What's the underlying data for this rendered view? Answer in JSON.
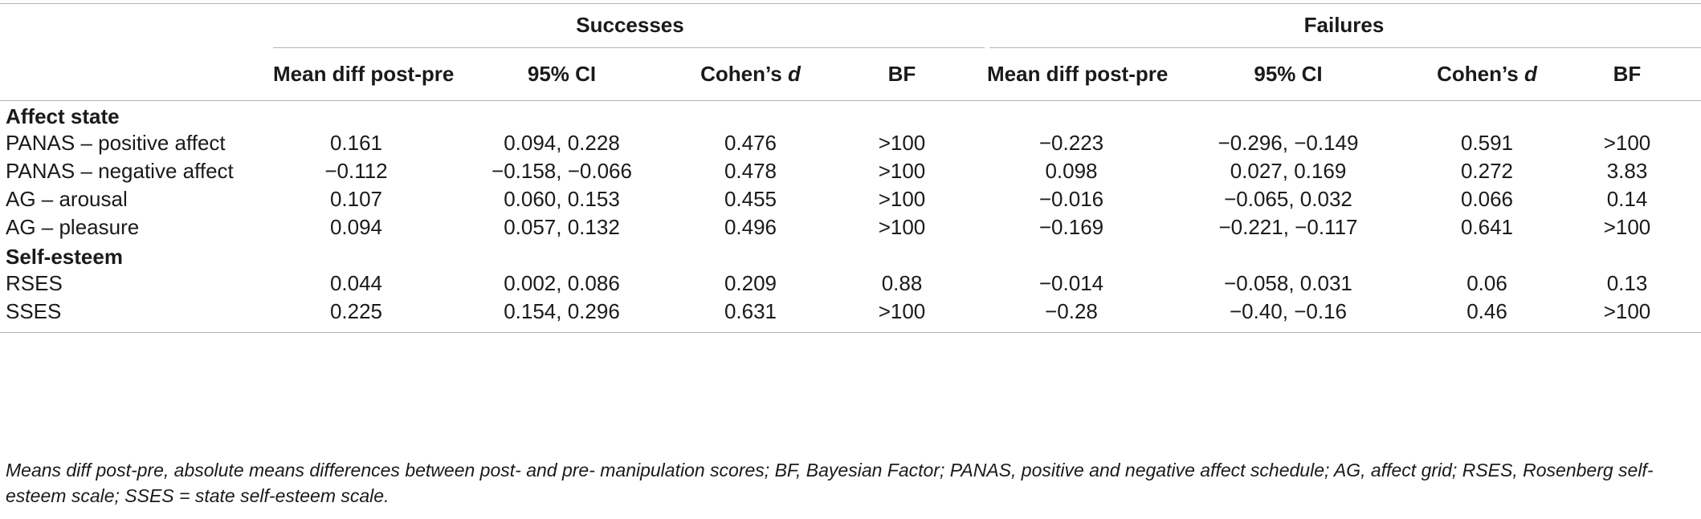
{
  "header": {
    "groups": [
      "Successes",
      "Failures"
    ],
    "columns": [
      {
        "text": "Mean diff post-pre",
        "italic": ""
      },
      {
        "text": "95% CI",
        "italic": ""
      },
      {
        "text": "Cohen’s ",
        "italic": "d"
      },
      {
        "text": "BF",
        "italic": ""
      },
      {
        "text": "Mean diff post-pre",
        "italic": ""
      },
      {
        "text": "95% CI",
        "italic": ""
      },
      {
        "text": "Cohen’s ",
        "italic": "d"
      },
      {
        "text": "BF",
        "italic": ""
      }
    ]
  },
  "sections": [
    {
      "title": "Affect state",
      "rows": [
        {
          "label": "PANAS – positive affect",
          "values": [
            "0.161",
            "0.094, 0.228",
            "0.476",
            ">100",
            "−0.223",
            "−0.296, −0.149",
            "0.591",
            ">100"
          ]
        },
        {
          "label": "PANAS – negative affect",
          "values": [
            "−0.112",
            "−0.158, −0.066",
            "0.478",
            ">100",
            "0.098",
            "0.027, 0.169",
            "0.272",
            "3.83"
          ]
        },
        {
          "label": "AG – arousal",
          "values": [
            "0.107",
            "0.060, 0.153",
            "0.455",
            ">100",
            "−0.016",
            "−0.065, 0.032",
            "0.066",
            "0.14"
          ]
        },
        {
          "label": "AG – pleasure",
          "values": [
            "0.094",
            "0.057, 0.132",
            "0.496",
            ">100",
            "−0.169",
            "−0.221, −0.117",
            "0.641",
            ">100"
          ]
        }
      ]
    },
    {
      "title": "Self-esteem",
      "rows": [
        {
          "label": "RSES",
          "values": [
            "0.044",
            "0.002, 0.086",
            "0.209",
            "0.88",
            "−0.014",
            "−0.058, 0.031",
            "0.06",
            "0.13"
          ]
        },
        {
          "label": "SSES",
          "values": [
            "0.225",
            "0.154, 0.296",
            "0.631",
            ">100",
            "−0.28",
            "−0.40, −0.16",
            "0.46",
            ">100"
          ]
        }
      ]
    }
  ],
  "footnote": "Means diff post-pre, absolute means differences between post- and pre- manipulation scores; BF, Bayesian Factor; PANAS, positive and negative affect schedule; AG, affect grid; RSES, Rosenberg self-esteem scale; SSES = state self-esteem scale."
}
